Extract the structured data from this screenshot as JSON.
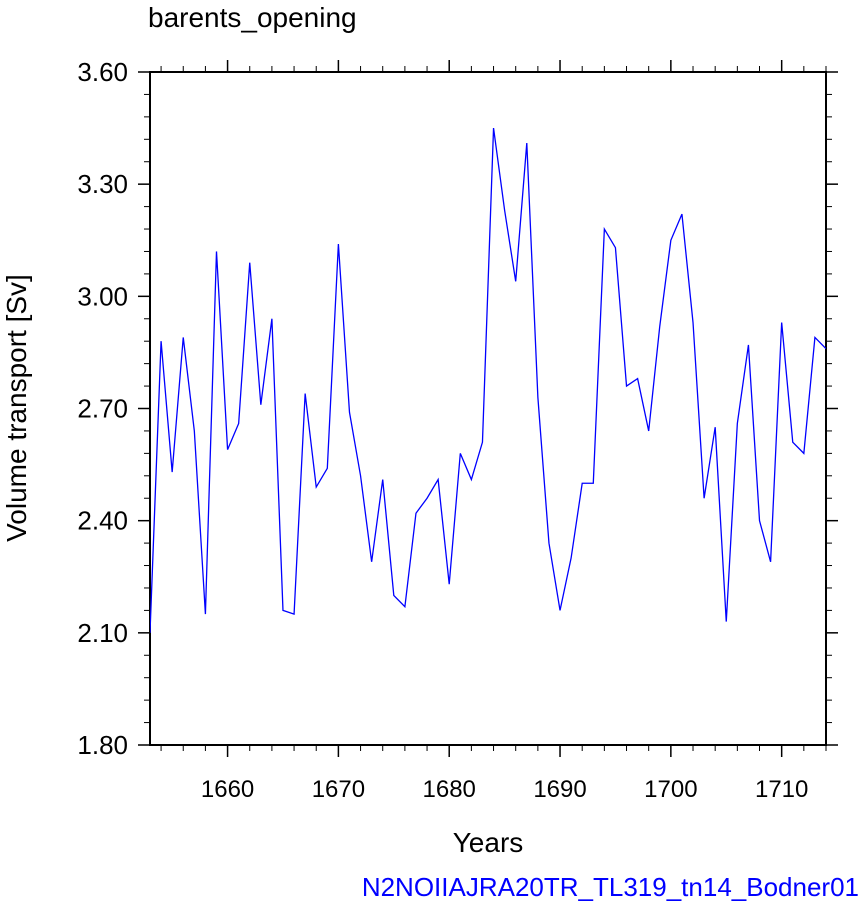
{
  "chart_data": {
    "type": "line",
    "title": "barents_opening",
    "xlabel": "Years",
    "ylabel": "Volume transport [Sv]",
    "footer": "N2NOIIAJRA20TR_TL319_tn14_Bodner01",
    "xlim": [
      1653,
      1714
    ],
    "ylim": [
      1.8,
      3.6
    ],
    "x_ticks": [
      1660,
      1670,
      1680,
      1690,
      1700,
      1710
    ],
    "y_ticks": [
      "1.80",
      "2.10",
      "2.40",
      "2.70",
      "3.00",
      "3.30",
      "3.60"
    ],
    "grid": false,
    "series": [
      {
        "color": "#0000ff",
        "x": [
          1653,
          1654,
          1655,
          1656,
          1657,
          1658,
          1659,
          1660,
          1661,
          1662,
          1663,
          1664,
          1665,
          1666,
          1667,
          1668,
          1669,
          1670,
          1671,
          1672,
          1673,
          1674,
          1675,
          1676,
          1677,
          1678,
          1679,
          1680,
          1681,
          1682,
          1683,
          1684,
          1685,
          1686,
          1687,
          1688,
          1689,
          1690,
          1691,
          1692,
          1693,
          1694,
          1695,
          1696,
          1697,
          1698,
          1699,
          1700,
          1701,
          1702,
          1703,
          1704,
          1705,
          1706,
          1707,
          1708,
          1709,
          1710,
          1711,
          1712,
          1713,
          1714
        ],
        "values": [
          2.1,
          2.88,
          2.53,
          2.89,
          2.64,
          2.15,
          3.12,
          2.59,
          2.66,
          3.09,
          2.71,
          2.94,
          2.16,
          2.15,
          2.74,
          2.49,
          2.54,
          3.14,
          2.69,
          2.52,
          2.29,
          2.51,
          2.2,
          2.17,
          2.42,
          2.46,
          2.51,
          2.23,
          2.58,
          2.51,
          2.61,
          3.45,
          3.23,
          3.04,
          3.41,
          2.73,
          2.34,
          2.16,
          2.3,
          2.5,
          2.5,
          3.18,
          3.13,
          2.76,
          2.78,
          2.64,
          2.92,
          3.15,
          3.22,
          2.93,
          2.46,
          2.65,
          2.13,
          2.66,
          2.87,
          2.4,
          2.29,
          2.93,
          2.61,
          2.58,
          2.89,
          2.86
        ]
      }
    ]
  }
}
